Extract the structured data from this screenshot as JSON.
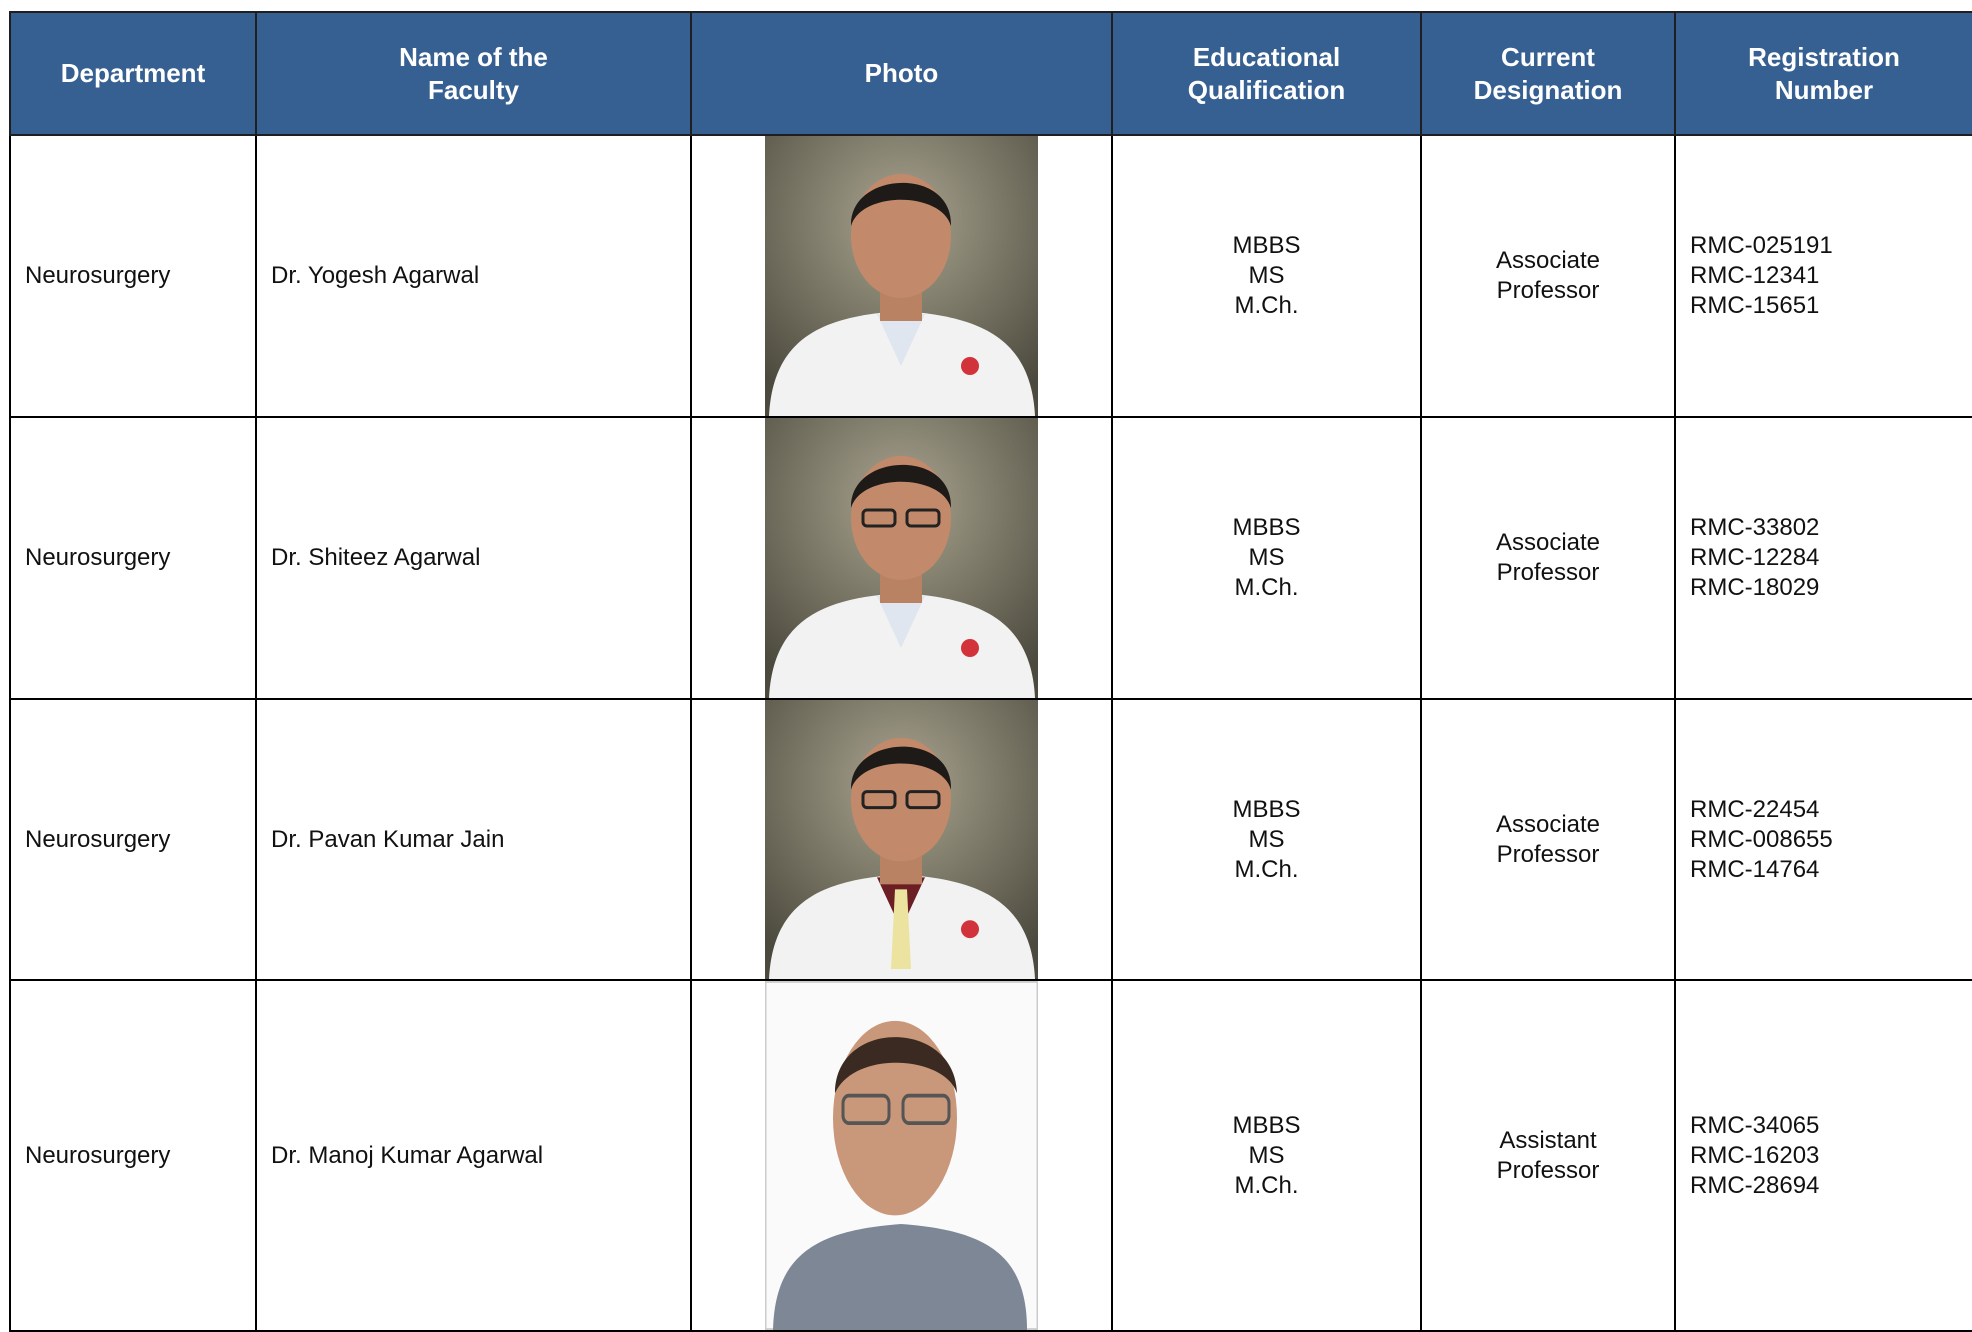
{
  "table": {
    "header": [
      "Department",
      "Name of the Faculty",
      "Photo",
      "Educational Qualification",
      "Current Designation",
      "Registration Number"
    ],
    "rows": [
      {
        "department": "Neurosurgery",
        "name": "Dr. Yogesh Agarwal",
        "qualification": [
          "MBBS",
          "MS",
          "M.Ch."
        ],
        "designation": "Associate Professor",
        "registration": [
          "RMC-025191",
          "RMC-12341",
          "RMC-15651"
        ]
      },
      {
        "department": "Neurosurgery",
        "name": "Dr. Shiteez Agarwal",
        "qualification": [
          "MBBS",
          "MS",
          "M.Ch."
        ],
        "designation": "Associate Professor",
        "registration": [
          "RMC-33802",
          "RMC-12284",
          "RMC-18029"
        ]
      },
      {
        "department": "Neurosurgery",
        "name": "Dr. Pavan Kumar Jain",
        "qualification": [
          "MBBS",
          "MS",
          "M.Ch."
        ],
        "designation": "Associate Professor",
        "registration": [
          "RMC-22454",
          "RMC-008655",
          "RMC-14764"
        ]
      },
      {
        "department": "Neurosurgery",
        "name": "Dr. Manoj Kumar Agarwal",
        "qualification": [
          "MBBS",
          "MS",
          "M.Ch."
        ],
        "designation": "Assistant Professor",
        "registration": [
          "RMC-34065",
          "RMC-16203",
          "RMC-28694"
        ]
      }
    ]
  }
}
